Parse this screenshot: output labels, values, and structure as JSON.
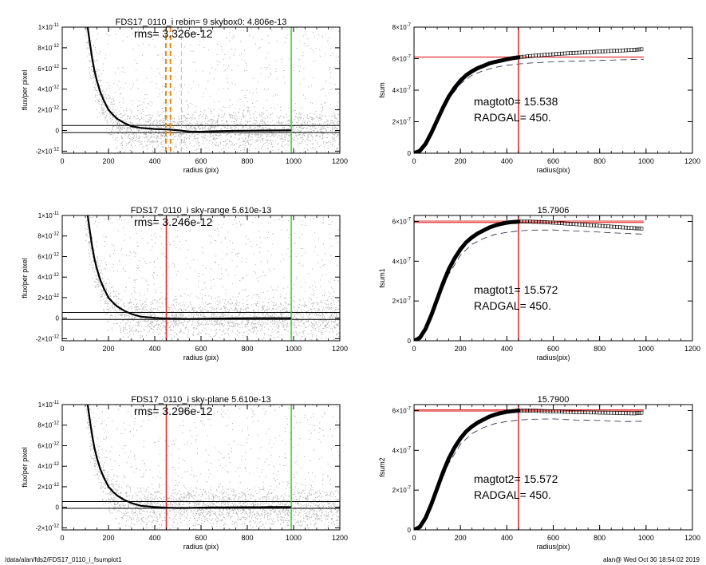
{
  "footer": {
    "left": "/data/alan/fds2/FDS17_0110_i_fsumplot1",
    "right": "alan@  Wed Oct 30 18:54:02 2019"
  },
  "colors": {
    "scatter": "#a8a8a8",
    "profile": "#000000",
    "radgal_line": "#e03030",
    "outer_line": "#33dd33",
    "skybox_line": "#e08a1e",
    "fsum_ref": "#e03030",
    "dashed": "#222244"
  },
  "chart_data": [
    {
      "type": "scatter",
      "title": "FDS17_0110_i rebin= 9    skybox0:  4.806e-13",
      "annotation": "rms= 3.326e-12",
      "xlabel": "radius (pix)",
      "ylabel": "flux/per pixel",
      "xlim": [
        0,
        1200
      ],
      "ylim": [
        -2.2e-12,
        1e-11
      ],
      "xticks": [
        0,
        200,
        400,
        600,
        800,
        1000,
        1200
      ],
      "xtick_labels": [
        "0",
        "200",
        "400",
        "600",
        "800",
        "1000",
        "1200"
      ],
      "yticks": [
        -2e-12,
        0,
        2e-12,
        4e-12,
        6e-12,
        8e-12,
        1e-11
      ],
      "ytick_labels": [
        [
          "-2×10",
          "-12"
        ],
        [
          "0",
          ""
        ],
        [
          "2×10",
          "-12"
        ],
        [
          "4×10",
          "-12"
        ],
        [
          "6×10",
          "-12"
        ],
        [
          "8×10",
          "-12"
        ],
        [
          "1×10",
          "-11"
        ]
      ],
      "hlines": [
        4.806e-13,
        -2e-13
      ],
      "vlines": [
        {
          "x": 448,
          "style": "orange-dashed"
        },
        {
          "x": 468,
          "style": "orange-dashed"
        },
        {
          "x": 515,
          "style": "gray-dashed"
        },
        {
          "x": 990,
          "style": "green"
        }
      ],
      "profile": [
        [
          110,
          1e-11
        ],
        [
          120,
          8.4e-12
        ],
        [
          130,
          6.9e-12
        ],
        [
          140,
          5.7e-12
        ],
        [
          150,
          4.8e-12
        ],
        [
          165,
          3.7e-12
        ],
        [
          180,
          2.9e-12
        ],
        [
          200,
          2e-12
        ],
        [
          220,
          1.5e-12
        ],
        [
          240,
          1.1e-12
        ],
        [
          270,
          7e-13
        ],
        [
          300,
          4e-13
        ],
        [
          340,
          2.5e-13
        ],
        [
          400,
          1.5e-13
        ],
        [
          450,
          1e-13
        ],
        [
          500,
          2e-14
        ],
        [
          550,
          -1e-13
        ],
        [
          600,
          -1.2e-13
        ],
        [
          650,
          -8e-14
        ],
        [
          700,
          -5e-14
        ],
        [
          750,
          -3e-14
        ],
        [
          800,
          -2e-14
        ],
        [
          850,
          -1e-14
        ],
        [
          900,
          0
        ],
        [
          990,
          1e-14
        ]
      ]
    },
    {
      "type": "scatter",
      "title": "FDS17_0110_i sky-range  5.610e-13",
      "annotation": "rms= 3.246e-12",
      "xlabel": "radius (pix)",
      "ylabel": "flux/per pixel",
      "xlim": [
        0,
        1200
      ],
      "ylim": [
        -2.2e-12,
        1e-11
      ],
      "xticks": [
        0,
        200,
        400,
        600,
        800,
        1000,
        1200
      ],
      "xtick_labels": [
        "0",
        "200",
        "400",
        "600",
        "800",
        "1000",
        "1200"
      ],
      "yticks": [
        -2e-12,
        0,
        2e-12,
        4e-12,
        6e-12,
        8e-12,
        1e-11
      ],
      "ytick_labels": [
        [
          "-2×10",
          "-12"
        ],
        [
          "0",
          ""
        ],
        [
          "2×10",
          "-12"
        ],
        [
          "4×10",
          "-12"
        ],
        [
          "6×10",
          "-12"
        ],
        [
          "8×10",
          "-12"
        ],
        [
          "1×10",
          "-11"
        ]
      ],
      "hlines": [
        5.61e-13,
        -1.2e-13
      ],
      "vlines": [
        {
          "x": 450,
          "style": "red"
        },
        {
          "x": 990,
          "style": "green"
        }
      ],
      "profile": [
        [
          110,
          1e-11
        ],
        [
          120,
          8.4e-12
        ],
        [
          130,
          6.9e-12
        ],
        [
          140,
          5.7e-12
        ],
        [
          150,
          4.8e-12
        ],
        [
          165,
          3.7e-12
        ],
        [
          180,
          2.9e-12
        ],
        [
          200,
          2e-12
        ],
        [
          220,
          1.5e-12
        ],
        [
          240,
          1.1e-12
        ],
        [
          270,
          7e-13
        ],
        [
          300,
          4e-13
        ],
        [
          340,
          1.5e-13
        ],
        [
          400,
          2e-14
        ],
        [
          450,
          -4e-14
        ],
        [
          500,
          -6e-14
        ],
        [
          550,
          -8e-14
        ],
        [
          600,
          -6e-14
        ],
        [
          650,
          -4e-14
        ],
        [
          700,
          -3e-14
        ],
        [
          750,
          -2e-14
        ],
        [
          800,
          -1e-14
        ],
        [
          850,
          0
        ],
        [
          900,
          0
        ],
        [
          990,
          0
        ]
      ]
    },
    {
      "type": "scatter",
      "title": "FDS17_0110_i sky-plane  5.610e-13",
      "annotation": "rms= 3.296e-12",
      "xlabel": "radius (pix)",
      "ylabel": "flux/per pixel",
      "xlim": [
        0,
        1200
      ],
      "ylim": [
        -2.2e-12,
        1e-11
      ],
      "xticks": [
        0,
        200,
        400,
        600,
        800,
        1000,
        1200
      ],
      "xtick_labels": [
        "0",
        "200",
        "400",
        "600",
        "800",
        "1000",
        "1200"
      ],
      "yticks": [
        -2e-12,
        0,
        2e-12,
        4e-12,
        6e-12,
        8e-12,
        1e-11
      ],
      "ytick_labels": [
        [
          "-2×10",
          "-12"
        ],
        [
          "0",
          ""
        ],
        [
          "2×10",
          "-12"
        ],
        [
          "4×10",
          "-12"
        ],
        [
          "6×10",
          "-12"
        ],
        [
          "8×10",
          "-12"
        ],
        [
          "1×10",
          "-11"
        ]
      ],
      "hlines": [
        5.61e-13,
        -1e-13
      ],
      "vlines": [
        {
          "x": 450,
          "style": "red"
        },
        {
          "x": 990,
          "style": "green"
        }
      ],
      "profile": [
        [
          110,
          1e-11
        ],
        [
          120,
          8.4e-12
        ],
        [
          130,
          6.9e-12
        ],
        [
          140,
          5.7e-12
        ],
        [
          150,
          4.8e-12
        ],
        [
          165,
          3.7e-12
        ],
        [
          180,
          2.9e-12
        ],
        [
          200,
          2e-12
        ],
        [
          220,
          1.5e-12
        ],
        [
          240,
          1.1e-12
        ],
        [
          270,
          7e-13
        ],
        [
          300,
          4e-13
        ],
        [
          340,
          1.5e-13
        ],
        [
          400,
          2e-14
        ],
        [
          450,
          -4e-14
        ],
        [
          500,
          -7e-14
        ],
        [
          550,
          -6e-14
        ],
        [
          600,
          -3e-14
        ],
        [
          650,
          -1e-14
        ],
        [
          700,
          -1e-14
        ],
        [
          750,
          0
        ],
        [
          800,
          1e-14
        ],
        [
          850,
          1e-14
        ],
        [
          900,
          2e-14
        ],
        [
          990,
          3e-14
        ]
      ]
    },
    {
      "type": "line",
      "title": "",
      "xlabel": "radius(pix)",
      "ylabel": "fsum",
      "xlim": [
        0,
        1200
      ],
      "ylim": [
        0,
        8e-07
      ],
      "xticks": [
        0,
        200,
        400,
        600,
        800,
        1000,
        1200
      ],
      "xtick_labels": [
        "0",
        "200",
        "400",
        "600",
        "800",
        "1000",
        "1200"
      ],
      "yticks": [
        0,
        2e-07,
        4e-07,
        6e-07,
        8e-07
      ],
      "ytick_labels": [
        [
          "0",
          ""
        ],
        [
          "2×10",
          "-7"
        ],
        [
          "4×10",
          "-7"
        ],
        [
          "6×10",
          "-7"
        ],
        [
          "8×10",
          "-7"
        ]
      ],
      "annotations": [
        "magtot0=  15.538",
        "RADGAL=     450."
      ],
      "hline": 6.1e-07,
      "vline": 450,
      "curve": [
        [
          0,
          0
        ],
        [
          25,
          1.5e-08
        ],
        [
          50,
          6e-08
        ],
        [
          75,
          1.3e-07
        ],
        [
          100,
          2.1e-07
        ],
        [
          125,
          2.9e-07
        ],
        [
          150,
          3.6e-07
        ],
        [
          175,
          4.15e-07
        ],
        [
          200,
          4.6e-07
        ],
        [
          225,
          4.95e-07
        ],
        [
          250,
          5.2e-07
        ],
        [
          275,
          5.4e-07
        ],
        [
          300,
          5.55e-07
        ],
        [
          325,
          5.7e-07
        ],
        [
          350,
          5.8e-07
        ],
        [
          375,
          5.88e-07
        ],
        [
          400,
          5.96e-07
        ],
        [
          425,
          6.03e-07
        ],
        [
          450,
          6.08e-07
        ]
      ],
      "markers": [
        [
          450,
          6.08e-07
        ],
        [
          500,
          6.16e-07
        ],
        [
          550,
          6.23e-07
        ],
        [
          600,
          6.28e-07
        ],
        [
          650,
          6.33e-07
        ],
        [
          700,
          6.37e-07
        ],
        [
          750,
          6.41e-07
        ],
        [
          800,
          6.45e-07
        ],
        [
          850,
          6.49e-07
        ],
        [
          900,
          6.52e-07
        ],
        [
          950,
          6.56e-07
        ],
        [
          990,
          6.6e-07
        ]
      ],
      "dashed": [
        [
          0,
          0
        ],
        [
          50,
          5.8e-08
        ],
        [
          100,
          2e-07
        ],
        [
          150,
          3.45e-07
        ],
        [
          200,
          4.4e-07
        ],
        [
          250,
          4.95e-07
        ],
        [
          300,
          5.25e-07
        ],
        [
          350,
          5.45e-07
        ],
        [
          400,
          5.58e-07
        ],
        [
          450,
          5.66e-07
        ],
        [
          500,
          5.72e-07
        ],
        [
          600,
          5.8e-07
        ],
        [
          700,
          5.85e-07
        ],
        [
          800,
          5.89e-07
        ],
        [
          900,
          5.93e-07
        ],
        [
          990,
          5.96e-07
        ]
      ]
    },
    {
      "type": "line",
      "title": "15.7906",
      "xlabel": "radius(pix)",
      "ylabel": "fsum1",
      "xlim": [
        0,
        1200
      ],
      "ylim": [
        0,
        6.3e-07
      ],
      "xticks": [
        0,
        200,
        400,
        600,
        800,
        1000,
        1200
      ],
      "xtick_labels": [
        "0",
        "200",
        "400",
        "600",
        "800",
        "1000",
        "1200"
      ],
      "yticks": [
        0,
        2e-07,
        4e-07,
        6e-07
      ],
      "ytick_labels": [
        [
          "0",
          ""
        ],
        [
          "2×10",
          "-7"
        ],
        [
          "4×10",
          "-7"
        ],
        [
          "6×10",
          "-7"
        ]
      ],
      "annotations": [
        "magtot1=  15.572",
        "RADGAL=     450."
      ],
      "hline": 5.95e-07,
      "hline2": 6.02e-07,
      "vline": 450,
      "curve": [
        [
          0,
          0
        ],
        [
          25,
          1.5e-08
        ],
        [
          50,
          6e-08
        ],
        [
          75,
          1.3e-07
        ],
        [
          100,
          2.1e-07
        ],
        [
          125,
          2.9e-07
        ],
        [
          150,
          3.6e-07
        ],
        [
          175,
          4.15e-07
        ],
        [
          200,
          4.6e-07
        ],
        [
          225,
          4.95e-07
        ],
        [
          250,
          5.2e-07
        ],
        [
          275,
          5.4e-07
        ],
        [
          300,
          5.55e-07
        ],
        [
          325,
          5.7e-07
        ],
        [
          350,
          5.8e-07
        ],
        [
          375,
          5.88e-07
        ],
        [
          400,
          5.94e-07
        ],
        [
          425,
          5.97e-07
        ],
        [
          450,
          5.99e-07
        ]
      ],
      "markers": [
        [
          450,
          5.99e-07
        ],
        [
          500,
          5.99e-07
        ],
        [
          550,
          5.97e-07
        ],
        [
          600,
          5.94e-07
        ],
        [
          650,
          5.9e-07
        ],
        [
          700,
          5.86e-07
        ],
        [
          750,
          5.82e-07
        ],
        [
          800,
          5.78e-07
        ],
        [
          850,
          5.74e-07
        ],
        [
          900,
          5.7e-07
        ],
        [
          950,
          5.66e-07
        ],
        [
          990,
          5.64e-07
        ]
      ],
      "dashed": [
        [
          0,
          0
        ],
        [
          50,
          5.6e-08
        ],
        [
          100,
          1.95e-07
        ],
        [
          150,
          3.35e-07
        ],
        [
          200,
          4.3e-07
        ],
        [
          250,
          4.85e-07
        ],
        [
          300,
          5.15e-07
        ],
        [
          350,
          5.35e-07
        ],
        [
          400,
          5.45e-07
        ],
        [
          450,
          5.52e-07
        ],
        [
          500,
          5.56e-07
        ],
        [
          600,
          5.57e-07
        ],
        [
          700,
          5.52e-07
        ],
        [
          800,
          5.46e-07
        ],
        [
          900,
          5.4e-07
        ],
        [
          990,
          5.36e-07
        ]
      ]
    },
    {
      "type": "line",
      "title": "15.7900",
      "xlabel": "radius(pix)",
      "ylabel": "fsum2",
      "xlim": [
        0,
        1200
      ],
      "ylim": [
        0,
        6.3e-07
      ],
      "xticks": [
        0,
        200,
        400,
        600,
        800,
        1000,
        1200
      ],
      "xtick_labels": [
        "0",
        "200",
        "400",
        "600",
        "800",
        "1000",
        "1200"
      ],
      "yticks": [
        0,
        2e-07,
        4e-07,
        6e-07
      ],
      "ytick_labels": [
        [
          "0",
          ""
        ],
        [
          "2×10",
          "-7"
        ],
        [
          "4×10",
          "-7"
        ],
        [
          "6×10",
          "-7"
        ]
      ],
      "annotations": [
        "magtot2=  15.572",
        "RADGAL=     450."
      ],
      "hline": 5.98e-07,
      "hline2": 6.04e-07,
      "vline": 450,
      "curve": [
        [
          0,
          0
        ],
        [
          25,
          1.5e-08
        ],
        [
          50,
          6e-08
        ],
        [
          75,
          1.3e-07
        ],
        [
          100,
          2.1e-07
        ],
        [
          125,
          2.9e-07
        ],
        [
          150,
          3.6e-07
        ],
        [
          175,
          4.15e-07
        ],
        [
          200,
          4.6e-07
        ],
        [
          225,
          4.95e-07
        ],
        [
          250,
          5.2e-07
        ],
        [
          275,
          5.4e-07
        ],
        [
          300,
          5.55e-07
        ],
        [
          325,
          5.7e-07
        ],
        [
          350,
          5.8e-07
        ],
        [
          375,
          5.88e-07
        ],
        [
          400,
          5.94e-07
        ],
        [
          425,
          5.97e-07
        ],
        [
          450,
          6e-07
        ]
      ],
      "markers": [
        [
          450,
          6e-07
        ],
        [
          500,
          6e-07
        ],
        [
          550,
          5.98e-07
        ],
        [
          600,
          5.96e-07
        ],
        [
          650,
          5.94e-07
        ],
        [
          700,
          5.92e-07
        ],
        [
          750,
          5.91e-07
        ],
        [
          800,
          5.9e-07
        ],
        [
          850,
          5.89e-07
        ],
        [
          900,
          5.87e-07
        ],
        [
          950,
          5.86e-07
        ],
        [
          990,
          5.9e-07
        ]
      ],
      "dashed": [
        [
          0,
          0
        ],
        [
          50,
          5.6e-08
        ],
        [
          100,
          1.95e-07
        ],
        [
          150,
          3.35e-07
        ],
        [
          200,
          4.3e-07
        ],
        [
          250,
          4.85e-07
        ],
        [
          300,
          5.15e-07
        ],
        [
          350,
          5.35e-07
        ],
        [
          400,
          5.45e-07
        ],
        [
          450,
          5.52e-07
        ],
        [
          500,
          5.56e-07
        ],
        [
          600,
          5.58e-07
        ],
        [
          700,
          5.52e-07
        ],
        [
          800,
          5.5e-07
        ],
        [
          900,
          5.45e-07
        ],
        [
          990,
          5.46e-07
        ]
      ]
    }
  ]
}
